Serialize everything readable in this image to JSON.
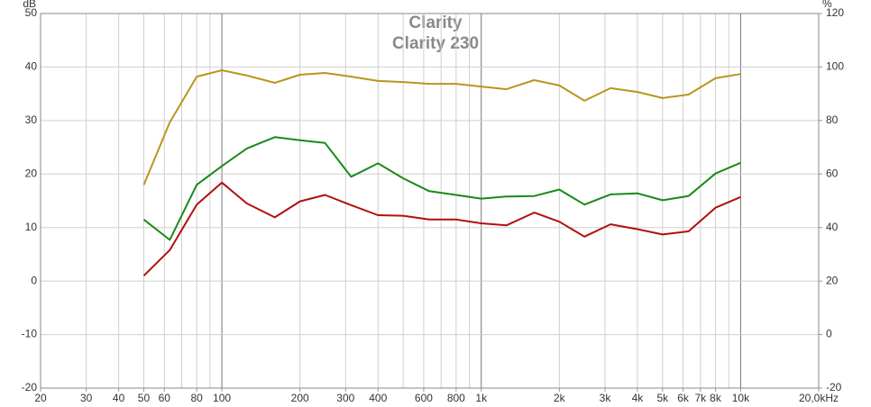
{
  "chart_data": {
    "type": "line",
    "title": "Clarity",
    "subtitle": "Clarity 230",
    "y_label": "dB",
    "y2_label": "%",
    "x": [
      50,
      63,
      80,
      100,
      125,
      160,
      200,
      250,
      315,
      400,
      500,
      630,
      800,
      1000,
      1250,
      1600,
      2000,
      2500,
      3150,
      4000,
      5000,
      6300,
      8000,
      10000
    ],
    "series": [
      {
        "color": "#b8961e",
        "axis": "y2",
        "values": [
          56.0,
          79.3,
          96.4,
          98.8,
          96.8,
          94.1,
          97.1,
          97.8,
          96.4,
          94.8,
          94.4,
          93.7,
          93.7,
          92.7,
          91.7,
          95.1,
          93.1,
          87.4,
          92.1,
          90.7,
          88.4,
          89.7,
          95.8,
          97.4
        ]
      },
      {
        "color": "#1a8a1a",
        "values": [
          11.5,
          7.7,
          18,
          21.5,
          24.8,
          26.9,
          26.3,
          25.8,
          19.5,
          22,
          19.2,
          16.8,
          16.1,
          15.4,
          15.8,
          15.9,
          17.1,
          14.3,
          16.2,
          16.4,
          15.1,
          15.9,
          20.1,
          22.1
        ]
      },
      {
        "color": "#b01010",
        "values": [
          1.0,
          5.8,
          14.3,
          18.4,
          14.5,
          11.9,
          14.9,
          16.1,
          14.2,
          12.3,
          12.2,
          11.5,
          11.5,
          10.8,
          10.4,
          12.8,
          11.1,
          8.3,
          10.6,
          9.7,
          8.7,
          9.3,
          13.7,
          15.7
        ]
      }
    ],
    "xlog": true,
    "xlim": [
      20,
      20000
    ],
    "xticks": [
      20,
      30,
      40,
      50,
      60,
      80,
      100,
      200,
      300,
      400,
      600,
      800,
      {
        "value": 1000,
        "label": "1k"
      },
      {
        "value": 2000,
        "label": "2k"
      },
      {
        "value": 3000,
        "label": "3k"
      },
      {
        "value": 4000,
        "label": "4k"
      },
      {
        "value": 5000,
        "label": "5k"
      },
      {
        "value": 6000,
        "label": "6k"
      },
      {
        "value": 7000,
        "label": "7k"
      },
      {
        "value": 8000,
        "label": "8k"
      },
      {
        "value": 10000,
        "label": "10k"
      },
      {
        "value": 20000,
        "label": "20,0kHz"
      }
    ],
    "ylim": [
      -20,
      50
    ],
    "yticks": [
      -20,
      -10,
      0,
      10,
      20,
      30,
      40,
      50
    ],
    "y2lim": [
      -20,
      120
    ],
    "y2ticks": [
      -20,
      0,
      20,
      40,
      60,
      80,
      100,
      120
    ],
    "grid": true
  }
}
